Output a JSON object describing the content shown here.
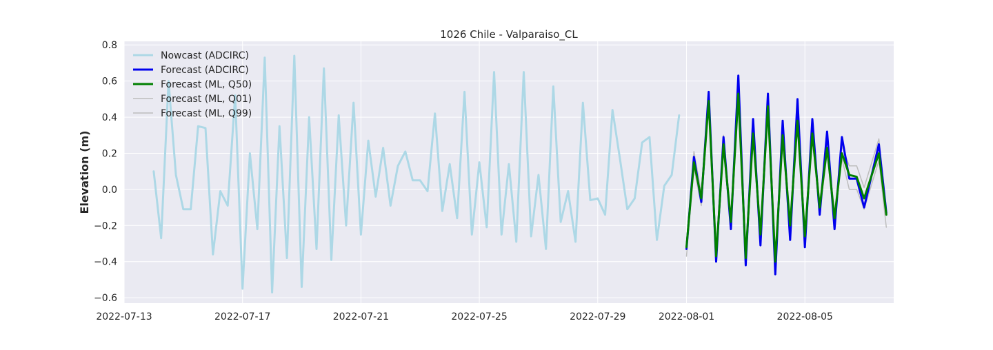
{
  "chart_data": {
    "type": "line",
    "title": "1026 Chile - Valparaiso_CL",
    "xlabel": "",
    "ylabel": "Elevation (m)",
    "xlim": [
      "2022-07-13",
      "2022-08-08"
    ],
    "ylim": [
      -0.63,
      0.82
    ],
    "x_ticks": [
      "2022-07-13",
      "2022-07-17",
      "2022-07-21",
      "2022-07-25",
      "2022-07-29",
      "2022-08-01",
      "2022-08-05"
    ],
    "y_ticks": [
      "−0.6",
      "−0.4",
      "−0.2",
      "0.0",
      "0.2",
      "0.4",
      "0.6",
      "0.8"
    ],
    "y_tick_values": [
      -0.6,
      -0.4,
      -0.2,
      0.0,
      0.2,
      0.4,
      0.6,
      0.8
    ],
    "grid": true,
    "legend_position": "top-left",
    "series": [
      {
        "name": "Nowcast (ADCIRC)",
        "color": "#add8e6",
        "x": [
          "2022-07-14T00:00",
          "2022-07-14T06:00",
          "2022-07-14T12:00",
          "2022-07-14T18:00",
          "2022-07-15T00:00",
          "2022-07-15T06:00",
          "2022-07-15T12:00",
          "2022-07-15T18:00",
          "2022-07-16T00:00",
          "2022-07-16T06:00",
          "2022-07-16T12:00",
          "2022-07-16T18:00",
          "2022-07-17T00:00",
          "2022-07-17T06:00",
          "2022-07-17T12:00",
          "2022-07-17T18:00",
          "2022-07-18T00:00",
          "2022-07-18T06:00",
          "2022-07-18T12:00",
          "2022-07-18T18:00",
          "2022-07-19T00:00",
          "2022-07-19T06:00",
          "2022-07-19T12:00",
          "2022-07-19T18:00",
          "2022-07-20T00:00",
          "2022-07-20T06:00",
          "2022-07-20T12:00",
          "2022-07-20T18:00",
          "2022-07-21T00:00",
          "2022-07-21T06:00",
          "2022-07-21T12:00",
          "2022-07-21T18:00",
          "2022-07-22T00:00",
          "2022-07-22T06:00",
          "2022-07-22T12:00",
          "2022-07-22T18:00",
          "2022-07-23T00:00",
          "2022-07-23T06:00",
          "2022-07-23T12:00",
          "2022-07-23T18:00",
          "2022-07-24T00:00",
          "2022-07-24T06:00",
          "2022-07-24T12:00",
          "2022-07-24T18:00",
          "2022-07-25T00:00",
          "2022-07-25T06:00",
          "2022-07-25T12:00",
          "2022-07-25T18:00",
          "2022-07-26T00:00",
          "2022-07-26T06:00",
          "2022-07-26T12:00",
          "2022-07-26T18:00",
          "2022-07-27T00:00",
          "2022-07-27T06:00",
          "2022-07-27T12:00",
          "2022-07-27T18:00",
          "2022-07-28T00:00",
          "2022-07-28T06:00",
          "2022-07-28T12:00",
          "2022-07-28T18:00",
          "2022-07-29T00:00",
          "2022-07-29T06:00",
          "2022-07-29T12:00",
          "2022-07-29T18:00",
          "2022-07-30T00:00",
          "2022-07-30T06:00",
          "2022-07-30T12:00",
          "2022-07-30T18:00",
          "2022-07-31T00:00",
          "2022-07-31T06:00",
          "2022-07-31T12:00",
          "2022-07-31T18:00"
        ],
        "y": [
          0.1,
          -0.27,
          0.6,
          0.08,
          -0.11,
          -0.11,
          0.35,
          0.34,
          -0.36,
          -0.01,
          -0.09,
          0.52,
          -0.55,
          0.2,
          -0.22,
          0.73,
          -0.57,
          0.35,
          -0.38,
          0.74,
          -0.54,
          0.4,
          -0.33,
          0.67,
          -0.39,
          0.41,
          -0.2,
          0.48,
          -0.25,
          0.27,
          -0.04,
          0.23,
          -0.09,
          0.13,
          0.21,
          0.05,
          0.05,
          -0.01,
          0.42,
          -0.12,
          0.14,
          -0.16,
          0.54,
          -0.25,
          0.15,
          -0.21,
          0.65,
          -0.25,
          0.14,
          -0.29,
          0.65,
          -0.26,
          0.08,
          -0.33,
          0.57,
          -0.18,
          -0.01,
          -0.29,
          0.48,
          -0.06,
          -0.05,
          -0.14,
          0.44,
          0.17,
          -0.11,
          -0.05,
          0.26,
          0.29,
          -0.28,
          0.02,
          0.08,
          0.41
        ]
      },
      {
        "name": "Forecast (ADCIRC)",
        "color": "#0000ee",
        "x": [
          "2022-08-01T00:00",
          "2022-08-01T06:00",
          "2022-08-01T12:00",
          "2022-08-01T18:00",
          "2022-08-02T00:00",
          "2022-08-02T06:00",
          "2022-08-02T12:00",
          "2022-08-02T18:00",
          "2022-08-03T00:00",
          "2022-08-03T06:00",
          "2022-08-03T12:00",
          "2022-08-03T18:00",
          "2022-08-04T00:00",
          "2022-08-04T06:00",
          "2022-08-04T12:00",
          "2022-08-04T18:00",
          "2022-08-05T00:00",
          "2022-08-05T06:00",
          "2022-08-05T12:00",
          "2022-08-05T18:00",
          "2022-08-06T00:00",
          "2022-08-06T06:00",
          "2022-08-06T12:00",
          "2022-08-06T18:00",
          "2022-08-07T00:00",
          "2022-08-07T12:00",
          "2022-08-07T18:00"
        ],
        "y": [
          -0.33,
          0.18,
          -0.07,
          0.54,
          -0.4,
          0.29,
          -0.22,
          0.63,
          -0.42,
          0.39,
          -0.31,
          0.53,
          -0.47,
          0.38,
          -0.28,
          0.5,
          -0.32,
          0.39,
          -0.14,
          0.32,
          -0.22,
          0.29,
          0.06,
          0.06,
          -0.1,
          0.25,
          -0.13
        ]
      },
      {
        "name": "Forecast (ML, Q50)",
        "color": "#008000",
        "x": [
          "2022-08-01T00:00",
          "2022-08-01T06:00",
          "2022-08-01T12:00",
          "2022-08-01T18:00",
          "2022-08-02T00:00",
          "2022-08-02T06:00",
          "2022-08-02T12:00",
          "2022-08-02T18:00",
          "2022-08-03T00:00",
          "2022-08-03T06:00",
          "2022-08-03T12:00",
          "2022-08-03T18:00",
          "2022-08-04T00:00",
          "2022-08-04T06:00",
          "2022-08-04T12:00",
          "2022-08-04T18:00",
          "2022-08-05T00:00",
          "2022-08-05T06:00",
          "2022-08-05T12:00",
          "2022-08-05T18:00",
          "2022-08-06T00:00",
          "2022-08-06T06:00",
          "2022-08-06T12:00",
          "2022-08-06T18:00",
          "2022-08-07T00:00",
          "2022-08-07T12:00",
          "2022-08-07T18:00"
        ],
        "y": [
          -0.32,
          0.15,
          -0.05,
          0.49,
          -0.37,
          0.25,
          -0.18,
          0.53,
          -0.38,
          0.31,
          -0.25,
          0.46,
          -0.4,
          0.3,
          -0.2,
          0.38,
          -0.26,
          0.31,
          -0.1,
          0.23,
          -0.16,
          0.2,
          0.08,
          0.07,
          -0.05,
          0.2,
          -0.14
        ]
      },
      {
        "name": "Forecast (ML, Q01)",
        "color": "#bdbdbd",
        "x": [
          "2022-08-01T00:00",
          "2022-08-01T06:00",
          "2022-08-01T12:00",
          "2022-08-01T18:00",
          "2022-08-02T00:00",
          "2022-08-02T06:00",
          "2022-08-02T12:00",
          "2022-08-02T18:00",
          "2022-08-03T00:00",
          "2022-08-03T06:00",
          "2022-08-03T12:00",
          "2022-08-03T18:00",
          "2022-08-04T00:00",
          "2022-08-04T06:00",
          "2022-08-04T12:00",
          "2022-08-04T18:00",
          "2022-08-05T00:00",
          "2022-08-05T06:00",
          "2022-08-05T12:00",
          "2022-08-05T18:00",
          "2022-08-06T00:00",
          "2022-08-06T06:00",
          "2022-08-06T12:00",
          "2022-08-06T18:00",
          "2022-08-07T00:00",
          "2022-08-07T12:00",
          "2022-08-07T18:00"
        ],
        "y": [
          -0.37,
          0.12,
          -0.09,
          0.45,
          -0.39,
          0.22,
          -0.21,
          0.49,
          -0.4,
          0.28,
          -0.27,
          0.43,
          -0.42,
          0.27,
          -0.22,
          0.35,
          -0.28,
          0.28,
          -0.13,
          0.2,
          -0.18,
          0.17,
          0.0,
          0.0,
          -0.11,
          0.16,
          -0.21
        ]
      },
      {
        "name": "Forecast (ML, Q99)",
        "color": "#bdbdbd",
        "x": [
          "2022-08-01T00:00",
          "2022-08-01T06:00",
          "2022-08-01T12:00",
          "2022-08-01T18:00",
          "2022-08-02T00:00",
          "2022-08-02T06:00",
          "2022-08-02T12:00",
          "2022-08-02T18:00",
          "2022-08-03T00:00",
          "2022-08-03T06:00",
          "2022-08-03T12:00",
          "2022-08-03T18:00",
          "2022-08-04T00:00",
          "2022-08-04T06:00",
          "2022-08-04T12:00",
          "2022-08-04T18:00",
          "2022-08-05T00:00",
          "2022-08-05T06:00",
          "2022-08-05T12:00",
          "2022-08-05T18:00",
          "2022-08-06T00:00",
          "2022-08-06T06:00",
          "2022-08-06T12:00",
          "2022-08-06T18:00",
          "2022-08-07T00:00",
          "2022-08-07T12:00",
          "2022-08-07T18:00"
        ],
        "y": [
          -0.29,
          0.21,
          -0.02,
          0.54,
          -0.34,
          0.3,
          -0.15,
          0.58,
          -0.35,
          0.35,
          -0.22,
          0.51,
          -0.37,
          0.34,
          -0.17,
          0.42,
          -0.23,
          0.35,
          -0.07,
          0.27,
          -0.13,
          0.24,
          0.13,
          0.13,
          0.01,
          0.28,
          -0.1
        ]
      }
    ]
  }
}
